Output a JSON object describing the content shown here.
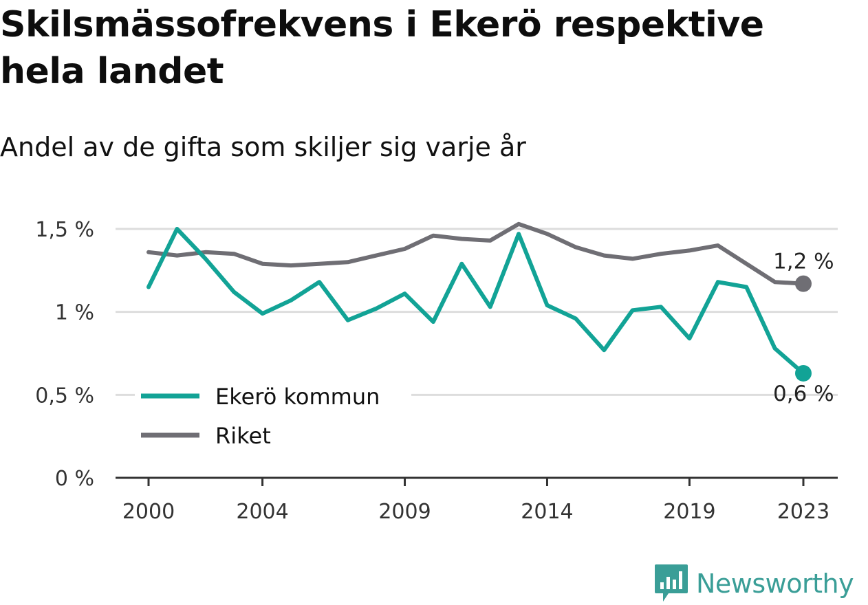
{
  "colors": {
    "primary": "#12a396",
    "secondary": "#6f6e74",
    "grid": "#dddddd",
    "axis": "#333333",
    "brand": "#3a9e97"
  },
  "header": {
    "title": "Skilsmässofrekvens i Ekerö respektive hela landet",
    "subtitle": "Andel av de gifta som skiljer sig varje år"
  },
  "chart_data": {
    "type": "line",
    "x": [
      2000,
      2001,
      2002,
      2003,
      2004,
      2005,
      2006,
      2007,
      2008,
      2009,
      2010,
      2011,
      2012,
      2013,
      2014,
      2015,
      2016,
      2017,
      2018,
      2019,
      2020,
      2021,
      2022,
      2023
    ],
    "series": [
      {
        "name": "Ekerö kommun",
        "values": [
          1.15,
          1.5,
          1.32,
          1.12,
          0.99,
          1.07,
          1.18,
          0.95,
          1.02,
          1.11,
          0.94,
          1.29,
          1.03,
          1.47,
          1.04,
          0.96,
          0.77,
          1.01,
          1.03,
          0.84,
          1.18,
          1.15,
          0.78,
          0.63
        ],
        "end_label": "0,6 %",
        "color": "#12a396"
      },
      {
        "name": "Riket",
        "values": [
          1.36,
          1.34,
          1.36,
          1.35,
          1.29,
          1.28,
          1.29,
          1.3,
          1.34,
          1.38,
          1.46,
          1.44,
          1.43,
          1.53,
          1.47,
          1.39,
          1.34,
          1.32,
          1.35,
          1.37,
          1.4,
          1.29,
          1.18,
          1.17
        ],
        "end_label": "1,2 %",
        "color": "#6f6e74"
      }
    ],
    "ylim": [
      0,
      1.5
    ],
    "y_ticks": [
      {
        "value": 0,
        "label": "0 %"
      },
      {
        "value": 0.5,
        "label": "0,5 %"
      },
      {
        "value": 1,
        "label": "1 %"
      },
      {
        "value": 1.5,
        "label": "1,5 %"
      }
    ],
    "x_ticks": [
      {
        "value": 2000,
        "label": "2000"
      },
      {
        "value": 2004,
        "label": "2004"
      },
      {
        "value": 2009,
        "label": "2009"
      },
      {
        "value": 2014,
        "label": "2014"
      },
      {
        "value": 2019,
        "label": "2019"
      },
      {
        "value": 2023,
        "label": "2023"
      }
    ],
    "xlim": [
      2000,
      2023
    ],
    "grid": true,
    "legend_position": "bottom-left"
  },
  "branding": {
    "name": "Newsworthy",
    "logo_icon": "newsworthy-chart-icon"
  }
}
